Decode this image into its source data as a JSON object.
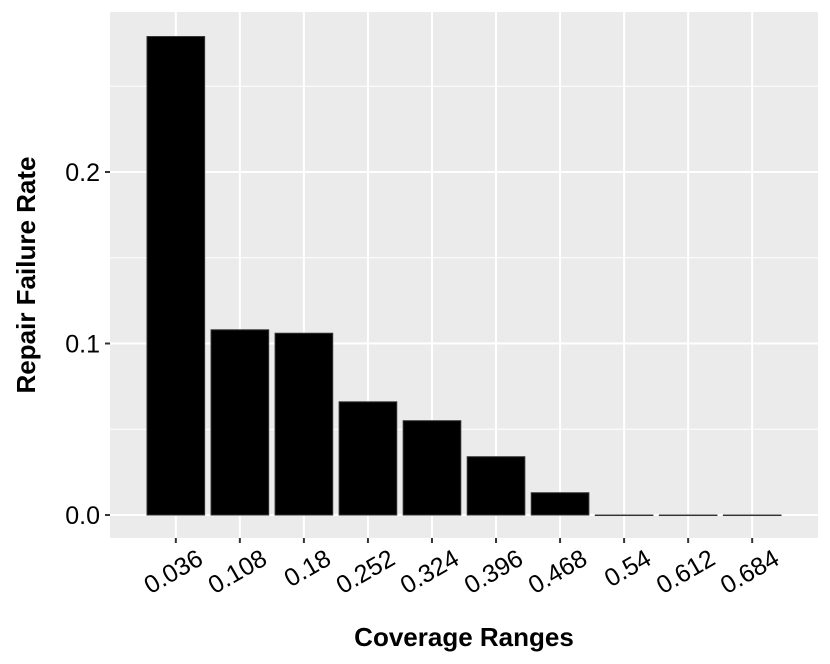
{
  "chart_data": {
    "type": "bar",
    "title": "",
    "xlabel": "Coverage Ranges",
    "ylabel": "Repair Failure Rate",
    "categories": [
      "0.036",
      "0.108",
      "0.18",
      "0.252",
      "0.324",
      "0.396",
      "0.468",
      "0.54",
      "0.612",
      "0.684"
    ],
    "x": [
      0.036,
      0.108,
      0.18,
      0.252,
      0.324,
      0.396,
      0.468,
      0.54,
      0.612,
      0.684
    ],
    "values": [
      0.279,
      0.108,
      0.106,
      0.066,
      0.055,
      0.034,
      0.013,
      0,
      0,
      0
    ],
    "yticks": [
      "0.0",
      "0.1",
      "0.2"
    ],
    "ytick_values": [
      0,
      0.1,
      0.2
    ],
    "xlim": [
      -0.038,
      0.758
    ],
    "ylim": [
      -0.0134,
      0.2933
    ],
    "grid": true,
    "colors": {
      "bar": "#000000",
      "panel": "#ebebeb",
      "grid": "#ffffff"
    }
  }
}
